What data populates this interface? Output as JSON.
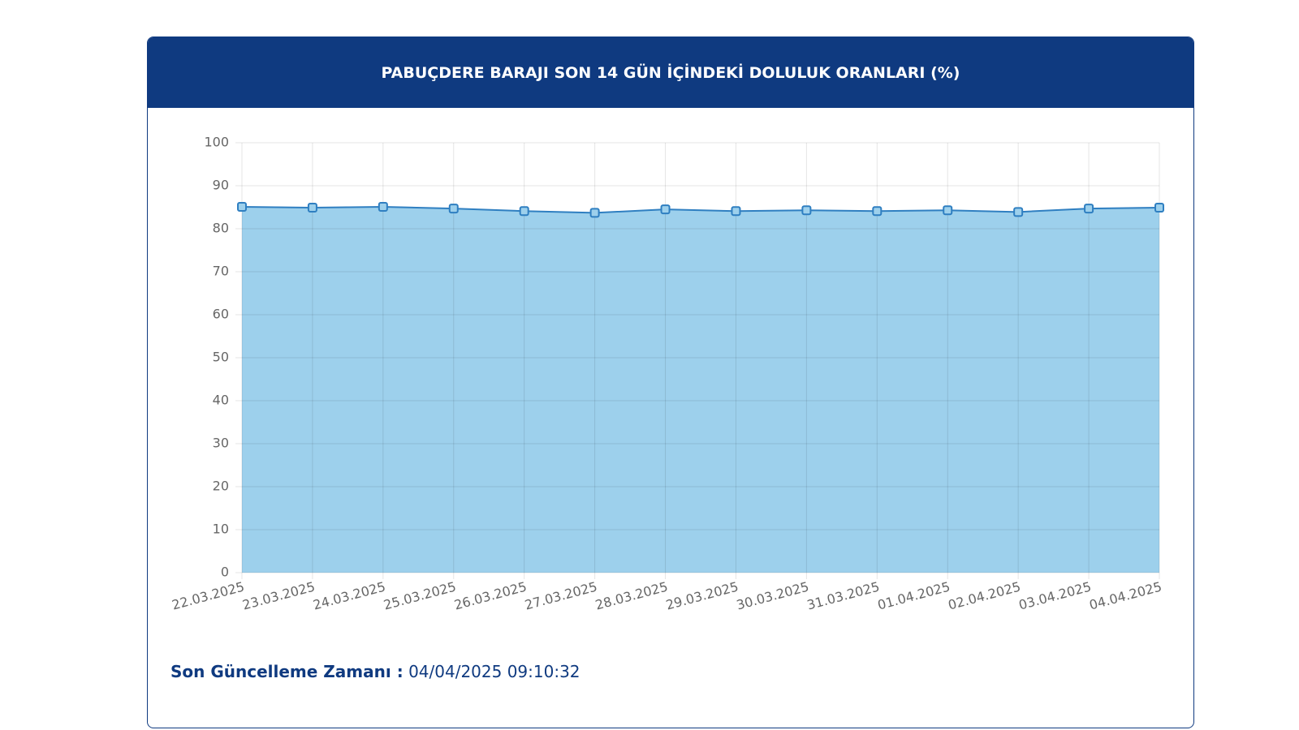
{
  "chart_data": {
    "type": "area",
    "title": "PABUÇDERE BARAJI SON 14 GÜN İÇİNDEKİ DOLULUK ORANLARI (%)",
    "x": [
      "22.03.2025",
      "23.03.2025",
      "24.03.2025",
      "25.03.2025",
      "26.03.2025",
      "27.03.2025",
      "28.03.2025",
      "29.03.2025",
      "30.03.2025",
      "31.03.2025",
      "01.04.2025",
      "02.04.2025",
      "03.04.2025",
      "04.04.2025"
    ],
    "values": [
      85.1,
      84.9,
      85.1,
      84.7,
      84.1,
      83.7,
      84.5,
      84.1,
      84.3,
      84.1,
      84.3,
      83.9,
      84.7,
      84.9
    ],
    "color": "#2f7fc1",
    "fill": "#9dd0ec",
    "ylim": [
      0,
      100
    ],
    "yticks": [
      0,
      10,
      20,
      30,
      40,
      50,
      60,
      70,
      80,
      90,
      100
    ],
    "grid": true
  },
  "footer": {
    "label": "Son Güncelleme Zamanı :",
    "value": "04/04/2025 09:10:32"
  }
}
